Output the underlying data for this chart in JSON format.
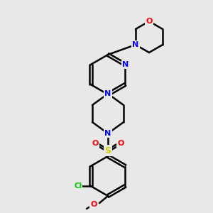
{
  "background_color": "#e8e8e8",
  "bond_color": "#000000",
  "atom_colors": {
    "N": "#0000ff",
    "O": "#ff0000",
    "S": "#cccc00",
    "Cl": "#00cc00",
    "C": "#000000"
  },
  "figsize": [
    3.0,
    3.0
  ],
  "dpi": 100
}
